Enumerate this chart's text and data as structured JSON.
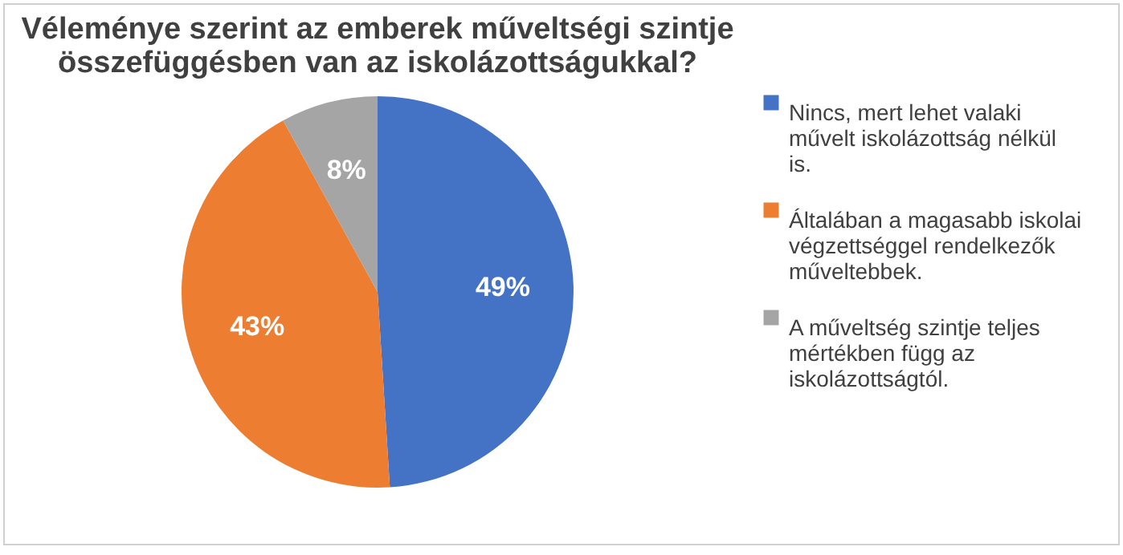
{
  "chart_data": {
    "type": "pie",
    "title": "Véleménye szerint az emberek műveltségi szintje összefüggésben van az iskolázottságukkal?",
    "categories": [
      "Nincs, mert lehet valaki művelt iskolázottság nélkül is.",
      "Általában a magasabb iskolai végzettséggel rendelkezők műveltebbek.",
      "A műveltség szintje teljes mértékben függ az iskolázottságtól."
    ],
    "values": [
      49,
      43,
      8
    ],
    "colors": [
      "#4472c4",
      "#ed7d31",
      "#a5a5a5"
    ],
    "value_labels": [
      "49%",
      "43%",
      "8%"
    ],
    "legend": "right"
  }
}
